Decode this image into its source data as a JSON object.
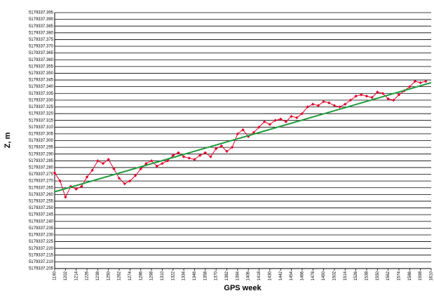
{
  "chart_data": {
    "type": "line",
    "xlabel": "GPS week",
    "ylabel": "Z, m",
    "xlim": [
      1190,
      1610
    ],
    "xticks": [
      1190,
      1202,
      1214,
      1226,
      1238,
      1250,
      1262,
      1274,
      1286,
      1298,
      1310,
      1322,
      1334,
      1346,
      1358,
      1370,
      1382,
      1394,
      1406,
      1418,
      1430,
      1442,
      1454,
      1466,
      1478,
      1490,
      1502,
      1514,
      1526,
      1538,
      1550,
      1562,
      1574,
      1586,
      1598,
      1610
    ],
    "ylim": [
      5179337.205,
      5179337.395
    ],
    "yticks": [
      5179337.205,
      {
        "value": 5179337.21,
        "label": "5179337.210"
      },
      5179337.215,
      {
        "value": 5179337.22,
        "label": "5179337.220"
      },
      5179337.225,
      {
        "value": 5179337.23,
        "label": "5179337.230"
      },
      5179337.235,
      {
        "value": 5179337.24,
        "label": "5179337.240"
      },
      5179337.245,
      {
        "value": 5179337.25,
        "label": "5179337.250"
      },
      5179337.255,
      {
        "value": 5179337.26,
        "label": "5179337.260"
      },
      5179337.265,
      {
        "value": 5179337.27,
        "label": "5179337.270"
      },
      5179337.275,
      {
        "value": 5179337.28,
        "label": "5179337.280"
      },
      5179337.285,
      {
        "value": 5179337.29,
        "label": "5179337.290"
      },
      5179337.295,
      {
        "value": 5179337.3,
        "label": "5179337.300"
      },
      5179337.305,
      {
        "value": 5179337.31,
        "label": "5179337.310"
      },
      5179337.315,
      {
        "value": 5179337.32,
        "label": "5179337.320"
      },
      5179337.325,
      {
        "value": 5179337.33,
        "label": "5179337.330"
      },
      5179337.335,
      {
        "value": 5179337.34,
        "label": "5179337.340"
      },
      5179337.345,
      {
        "value": 5179337.35,
        "label": "5179337.350"
      },
      5179337.355,
      {
        "value": 5179337.36,
        "label": "5179337.360"
      },
      5179337.365,
      {
        "value": 5179337.37,
        "label": "5179337.370"
      },
      5179337.375,
      {
        "value": 5179337.38,
        "label": "5179337.380"
      },
      5179337.385,
      {
        "value": 5179337.39,
        "label": "5179337.390"
      },
      5179337.395
    ],
    "grid": true,
    "series": [
      {
        "color": "#e4002b",
        "markers": true,
        "x": [
          1190,
          1196,
          1202,
          1208,
          1214,
          1220,
          1226,
          1232,
          1238,
          1244,
          1250,
          1256,
          1262,
          1268,
          1274,
          1280,
          1286,
          1292,
          1298,
          1304,
          1310,
          1316,
          1322,
          1328,
          1334,
          1340,
          1346,
          1352,
          1358,
          1364,
          1370,
          1376,
          1382,
          1388,
          1394,
          1400,
          1406,
          1412,
          1418,
          1424,
          1430,
          1436,
          1442,
          1448,
          1454,
          1460,
          1466,
          1472,
          1478,
          1484,
          1490,
          1496,
          1502,
          1508,
          1514,
          1520,
          1526,
          1532,
          1538,
          1544,
          1550,
          1556,
          1562,
          1568,
          1574,
          1580,
          1586,
          1592,
          1598,
          1604
        ],
        "values": [
          5179337.276,
          5179337.27,
          5179337.258,
          5179337.266,
          5179337.264,
          5179337.266,
          5179337.273,
          5179337.278,
          5179337.285,
          5179337.283,
          5179337.286,
          5179337.279,
          5179337.272,
          5179337.268,
          5179337.27,
          5179337.274,
          5179337.279,
          5179337.283,
          5179337.285,
          5179337.281,
          5179337.283,
          5179337.285,
          5179337.289,
          5179337.291,
          5179337.288,
          5179337.287,
          5179337.286,
          5179337.289,
          5179337.291,
          5179337.288,
          5179337.294,
          5179337.296,
          5179337.292,
          5179337.295,
          5179337.305,
          5179337.308,
          5179337.303,
          5179337.306,
          5179337.31,
          5179337.314,
          5179337.312,
          5179337.315,
          5179337.316,
          5179337.314,
          5179337.318,
          5179337.317,
          5179337.32,
          5179337.325,
          5179337.327,
          5179337.326,
          5179337.329,
          5179337.328,
          5179337.326,
          5179337.325,
          5179337.327,
          5179337.33,
          5179337.333,
          5179337.334,
          5179337.333,
          5179337.332,
          5179337.336,
          5179337.335,
          5179337.331,
          5179337.33,
          5179337.334,
          5179337.337,
          5179337.34,
          5179337.344,
          5179337.343,
          5179337.344
        ]
      },
      {
        "color": "#1f9a3c",
        "markers": false,
        "x": [
          1190,
          1610
        ],
        "values": [
          5179337.262,
          5179337.343
        ]
      }
    ]
  }
}
